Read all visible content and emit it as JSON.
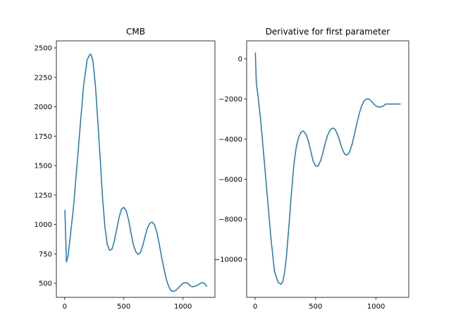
{
  "chart_data": [
    {
      "type": "line",
      "title": "CMB",
      "xlabel": "",
      "ylabel": "",
      "xlim": [
        -70,
        1270
      ],
      "ylim": [
        380,
        2560
      ],
      "xticks": [
        0,
        500,
        1000
      ],
      "yticks": [
        500,
        750,
        1000,
        1250,
        1500,
        1750,
        2000,
        2250,
        2500
      ],
      "grid": false,
      "series": [
        {
          "color": "#1f77b4",
          "x": [
            2,
            15,
            30,
            50,
            75,
            100,
            130,
            160,
            190,
            215,
            225,
            240,
            260,
            280,
            300,
            320,
            340,
            360,
            380,
            400,
            420,
            440,
            460,
            480,
            500,
            520,
            540,
            560,
            580,
            600,
            620,
            640,
            660,
            680,
            700,
            720,
            740,
            760,
            780,
            800,
            820,
            840,
            860,
            880,
            900,
            920,
            940,
            960,
            980,
            1000,
            1020,
            1040,
            1060,
            1080,
            1100,
            1120,
            1140,
            1160,
            1180,
            1200
          ],
          "y": [
            1120,
            680,
            740,
            920,
            1150,
            1450,
            1820,
            2180,
            2400,
            2448,
            2440,
            2380,
            2180,
            1880,
            1560,
            1230,
            980,
            830,
            780,
            790,
            860,
            960,
            1060,
            1130,
            1145,
            1115,
            1040,
            930,
            830,
            770,
            745,
            760,
            820,
            900,
            970,
            1010,
            1020,
            995,
            930,
            830,
            720,
            620,
            530,
            470,
            435,
            430,
            440,
            460,
            480,
            500,
            505,
            500,
            480,
            470,
            475,
            480,
            495,
            505,
            500,
            475
          ]
        }
      ]
    },
    {
      "type": "line",
      "title": "Derivative for first parameter",
      "xlabel": "",
      "ylabel": "",
      "xlim": [
        -70,
        1270
      ],
      "ylim": [
        -11900,
        900
      ],
      "xticks": [
        0,
        500,
        1000
      ],
      "yticks": [
        0,
        -2000,
        -4000,
        -6000,
        -8000,
        -10000
      ],
      "grid": false,
      "series": [
        {
          "color": "#1f77b4",
          "x": [
            2,
            10,
            25,
            45,
            70,
            100,
            130,
            160,
            190,
            215,
            230,
            245,
            260,
            280,
            300,
            320,
            340,
            360,
            380,
            400,
            420,
            440,
            460,
            480,
            500,
            520,
            540,
            560,
            580,
            600,
            620,
            640,
            660,
            680,
            700,
            720,
            740,
            760,
            780,
            800,
            820,
            840,
            860,
            880,
            900,
            920,
            940,
            960,
            980,
            1000,
            1020,
            1040,
            1060,
            1080,
            1100,
            1120,
            1140,
            1160,
            1180,
            1200
          ],
          "y": [
            300,
            -1200,
            -1900,
            -3000,
            -4700,
            -6800,
            -8900,
            -10600,
            -11150,
            -11250,
            -11100,
            -10600,
            -9800,
            -8300,
            -6700,
            -5300,
            -4400,
            -3900,
            -3650,
            -3600,
            -3750,
            -4100,
            -4600,
            -5100,
            -5350,
            -5350,
            -5100,
            -4700,
            -4200,
            -3800,
            -3550,
            -3450,
            -3500,
            -3750,
            -4100,
            -4500,
            -4750,
            -4800,
            -4650,
            -4300,
            -3800,
            -3250,
            -2750,
            -2350,
            -2100,
            -2000,
            -2000,
            -2100,
            -2250,
            -2350,
            -2400,
            -2400,
            -2350,
            -2250,
            -2250,
            -2250,
            -2250,
            -2250,
            -2250,
            -2250
          ]
        }
      ]
    }
  ]
}
